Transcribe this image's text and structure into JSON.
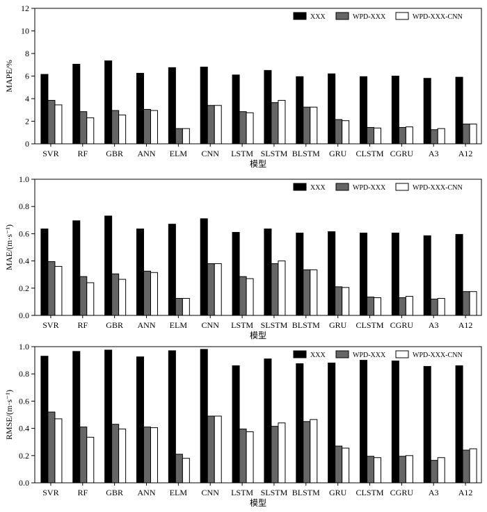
{
  "chart_data": [
    {
      "type": "bar",
      "title": "",
      "xlabel": "模型",
      "ylabel": "MAPE/%",
      "ylim": [
        0,
        12
      ],
      "yticks": [
        "0",
        "2",
        "4",
        "6",
        "8",
        "10",
        "12"
      ],
      "grid": false,
      "legend_position": "top-right",
      "categories": [
        "SVR",
        "RF",
        "GBR",
        "ANN",
        "ELM",
        "CNN",
        "LSTM",
        "SLSTM",
        "BLSTM",
        "GRU",
        "CLSTM",
        "CGRU",
        "A3",
        "A12"
      ],
      "series": [
        {
          "name": "XXX",
          "color": "#000000",
          "values": [
            6.15,
            7.05,
            7.35,
            6.25,
            6.75,
            6.8,
            6.1,
            6.5,
            5.95,
            6.2,
            5.95,
            6.0,
            5.8,
            5.9
          ]
        },
        {
          "name": "WPD-XXX",
          "color": "#666666",
          "values": [
            3.85,
            2.85,
            2.95,
            3.05,
            1.35,
            3.4,
            2.85,
            3.65,
            3.25,
            2.15,
            1.45,
            1.45,
            1.25,
            1.75
          ]
        },
        {
          "name": "WPD-XXX-CNN",
          "color": "#ffffff",
          "values": [
            3.45,
            2.3,
            2.55,
            2.95,
            1.35,
            3.4,
            2.75,
            3.85,
            3.25,
            2.05,
            1.4,
            1.5,
            1.35,
            1.75
          ]
        }
      ]
    },
    {
      "type": "bar",
      "title": "",
      "xlabel": "模型",
      "ylabel": "MAE/(m·s⁻¹)",
      "ylim": [
        0,
        1.0
      ],
      "yticks": [
        "0.0",
        "0.2",
        "0.4",
        "0.6",
        "0.8",
        "1.0"
      ],
      "grid": false,
      "legend_position": "top-right",
      "categories": [
        "SVR",
        "RF",
        "GBR",
        "ANN",
        "ELM",
        "CNN",
        "LSTM",
        "SLSTM",
        "BLSTM",
        "GRU",
        "CLSTM",
        "CGRU",
        "A3",
        "A12"
      ],
      "series": [
        {
          "name": "XXX",
          "color": "#000000",
          "values": [
            0.635,
            0.695,
            0.73,
            0.635,
            0.67,
            0.71,
            0.61,
            0.635,
            0.605,
            0.615,
            0.605,
            0.605,
            0.585,
            0.595
          ]
        },
        {
          "name": "WPD-XXX",
          "color": "#666666",
          "values": [
            0.395,
            0.285,
            0.305,
            0.325,
            0.125,
            0.38,
            0.285,
            0.38,
            0.335,
            0.21,
            0.135,
            0.13,
            0.12,
            0.175
          ]
        },
        {
          "name": "WPD-XXX-CNN",
          "color": "#ffffff",
          "values": [
            0.36,
            0.24,
            0.265,
            0.315,
            0.125,
            0.38,
            0.27,
            0.4,
            0.335,
            0.205,
            0.13,
            0.14,
            0.125,
            0.175
          ]
        }
      ]
    },
    {
      "type": "bar",
      "title": "",
      "xlabel": "模型",
      "ylabel": "RMSE/(m·s⁻¹)",
      "ylim": [
        0,
        1.0
      ],
      "yticks": [
        "0.0",
        "0.2",
        "0.4",
        "0.6",
        "0.8",
        "1.0"
      ],
      "grid": false,
      "legend_position": "top-right",
      "categories": [
        "SVR",
        "RF",
        "GBR",
        "ANN",
        "ELM",
        "CNN",
        "LSTM",
        "SLSTM",
        "BLSTM",
        "GRU",
        "CLSTM",
        "CGRU",
        "A3",
        "A12"
      ],
      "series": [
        {
          "name": "XXX",
          "color": "#000000",
          "values": [
            0.93,
            0.965,
            0.975,
            0.925,
            0.97,
            0.98,
            0.86,
            0.91,
            0.875,
            0.88,
            0.9,
            0.895,
            0.855,
            0.86
          ]
        },
        {
          "name": "WPD-XXX",
          "color": "#666666",
          "values": [
            0.52,
            0.41,
            0.43,
            0.41,
            0.21,
            0.49,
            0.395,
            0.415,
            0.45,
            0.27,
            0.195,
            0.195,
            0.165,
            0.24
          ]
        },
        {
          "name": "WPD-XXX-CNN",
          "color": "#ffffff",
          "values": [
            0.47,
            0.335,
            0.395,
            0.405,
            0.18,
            0.49,
            0.375,
            0.44,
            0.465,
            0.255,
            0.185,
            0.2,
            0.185,
            0.25
          ]
        }
      ]
    }
  ]
}
